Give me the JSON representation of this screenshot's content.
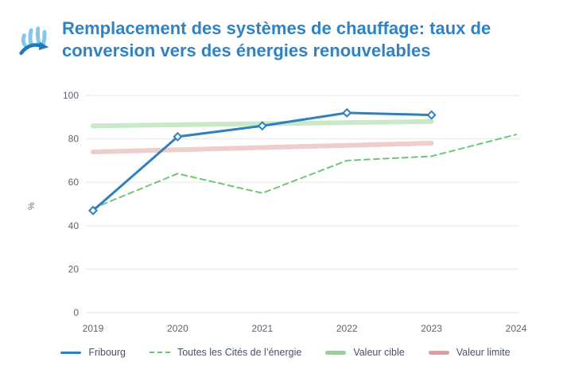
{
  "header": {
    "title": "Remplacement des systèmes de chauffage: taux de conversion vers des énergies renouvelables",
    "icon": "heating-conversion-icon"
  },
  "colors": {
    "title": "#3182C3",
    "gridline": "#E9EBEF",
    "tick_text": "#5C6470",
    "legend_text": "#4A5263",
    "background": "#FFFFFF"
  },
  "chart_data": {
    "type": "line",
    "title": "Remplacement des systèmes de chauffage: taux de conversion vers des énergies renouvelables",
    "xlabel": "",
    "ylabel": "%",
    "ylim": [
      0,
      100
    ],
    "yticks": [
      0,
      20,
      40,
      60,
      80,
      100
    ],
    "xticks": [
      2019,
      2020,
      2021,
      2022,
      2023,
      2024
    ],
    "grid": true,
    "legend_position": "bottom",
    "series": [
      {
        "name": "Fribourg",
        "style": "solid",
        "color": "#2F80C0",
        "marker": "diamond",
        "x": [
          2019,
          2020,
          2021,
          2022,
          2023
        ],
        "values": [
          47,
          81,
          86,
          92,
          91
        ]
      },
      {
        "name": "Toutes les Cités de l’énergie",
        "style": "dashed",
        "color": "#6FC776",
        "marker": "none",
        "x": [
          2019,
          2020,
          2021,
          2022,
          2023,
          2024
        ],
        "values": [
          48,
          64,
          55,
          70,
          72,
          82
        ]
      },
      {
        "name": "Valeur cible",
        "style": "band",
        "color": "#96D195",
        "marker": "none",
        "x": [
          2019,
          2023
        ],
        "values": [
          86,
          88
        ]
      },
      {
        "name": "Valeur limite",
        "style": "band",
        "color": "#DE9E97",
        "marker": "none",
        "x": [
          2019,
          2023
        ],
        "values": [
          74,
          78
        ]
      }
    ]
  }
}
